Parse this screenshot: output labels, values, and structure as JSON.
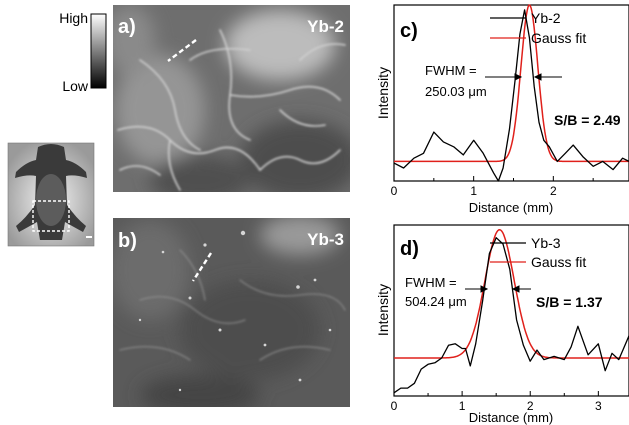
{
  "colorbar": {
    "high": "High",
    "low": "Low"
  },
  "images": [
    {
      "label": "a)",
      "name": "Yb-2"
    },
    {
      "label": "b)",
      "name": "Yb-3"
    }
  ],
  "colors": {
    "data": "#000000",
    "fit": "#e0201b"
  },
  "chart_data": [
    {
      "type": "line",
      "panel": "c)",
      "xlabel": "Distance (mm)",
      "ylabel": "Intensity",
      "xlim": [
        0,
        2.95
      ],
      "ylim": [
        0,
        1.08
      ],
      "xticks": [
        0,
        1,
        2
      ],
      "annotations": {
        "fwhm_line1": "FWHM =",
        "fwhm_line2": "250.03 μm",
        "sb": "S/B = 2.49"
      },
      "series": [
        {
          "name": "Yb-2",
          "color": "#000000",
          "x": [
            0,
            0.12,
            0.25,
            0.37,
            0.5,
            0.62,
            0.75,
            0.87,
            1.0,
            1.12,
            1.25,
            1.31,
            1.37,
            1.45,
            1.52,
            1.58,
            1.64,
            1.7,
            1.76,
            1.82,
            1.88,
            1.95,
            2.05,
            2.15,
            2.25,
            2.37,
            2.5,
            2.62,
            2.75,
            2.87,
            2.95
          ],
          "y": [
            0.11,
            0.08,
            0.14,
            0.17,
            0.3,
            0.24,
            0.21,
            0.16,
            0.25,
            0.17,
            0.05,
            -0.02,
            0.08,
            0.32,
            0.62,
            0.9,
            1.05,
            0.88,
            0.58,
            0.36,
            0.25,
            0.21,
            0.12,
            0.17,
            0.22,
            0.15,
            0.09,
            0.12,
            0.07,
            0.14,
            0.12
          ]
        },
        {
          "name": "Gauss fit",
          "color": "#e0201b",
          "fit": {
            "baseline": 0.12,
            "amplitude": 0.96,
            "center": 1.7,
            "sigma": 0.106
          }
        }
      ]
    },
    {
      "type": "line",
      "panel": "d)",
      "xlabel": "Distance (mm)",
      "ylabel": "Intensity",
      "xlim": [
        0,
        3.45
      ],
      "ylim": [
        0,
        1.08
      ],
      "xticks": [
        0,
        1,
        2,
        3
      ],
      "annotations": {
        "fwhm_line1": "FWHM =",
        "fwhm_line2": "504.24 μm",
        "sb": "S/B = 1.37"
      },
      "series": [
        {
          "name": "Yb-3",
          "color": "#000000",
          "x": [
            0,
            0.1,
            0.2,
            0.3,
            0.4,
            0.5,
            0.6,
            0.7,
            0.8,
            0.9,
            1.0,
            1.05,
            1.12,
            1.2,
            1.3,
            1.4,
            1.5,
            1.6,
            1.7,
            1.8,
            1.9,
            2.0,
            2.1,
            2.2,
            2.35,
            2.5,
            2.6,
            2.7,
            2.85,
            3.0,
            3.1,
            3.2,
            3.3,
            3.45
          ],
          "y": [
            0.02,
            0.05,
            0.05,
            0.08,
            0.17,
            0.2,
            0.21,
            0.24,
            0.32,
            0.33,
            0.3,
            0.3,
            0.19,
            0.33,
            0.6,
            0.9,
            1.0,
            0.96,
            0.8,
            0.48,
            0.32,
            0.22,
            0.29,
            0.23,
            0.25,
            0.23,
            0.31,
            0.44,
            0.26,
            0.33,
            0.16,
            0.27,
            0.23,
            0.38
          ]
        },
        {
          "name": "Gauss fit",
          "color": "#e0201b",
          "fit": {
            "baseline": 0.24,
            "amplitude": 0.81,
            "center": 1.55,
            "sigma": 0.214
          }
        }
      ]
    }
  ]
}
